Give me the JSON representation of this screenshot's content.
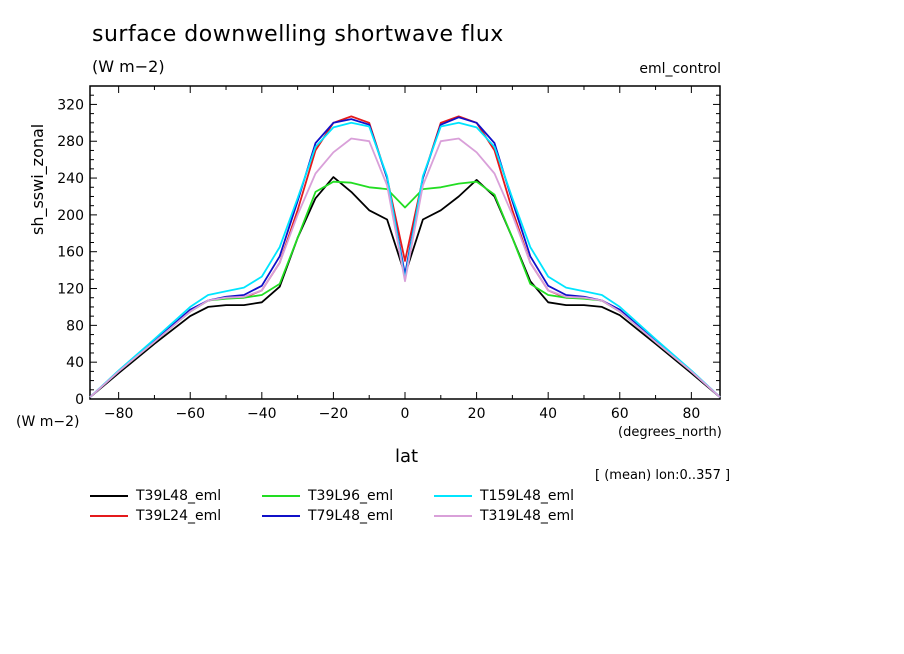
{
  "title": "surface downwelling shortwave flux",
  "units_label": "(W m−2)",
  "run_label": "eml_control",
  "y_axis_label": "sh_sswi_zonal",
  "y_unit_label": "(W m−2)",
  "x_unit_label": "(degrees_north)",
  "x_axis_label": "lat",
  "mean_note": "[ (mean) lon:0..357 ]",
  "chart_data": {
    "type": "line",
    "xlim": [
      -88,
      88
    ],
    "ylim": [
      0,
      340
    ],
    "x_ticks": [
      -80,
      -60,
      -40,
      -20,
      0,
      20,
      40,
      60,
      80
    ],
    "x_tick_labels": [
      "−80",
      "−60",
      "−40",
      "−20",
      "0",
      "20",
      "40",
      "60",
      "80"
    ],
    "y_ticks": [
      0,
      40,
      80,
      120,
      160,
      200,
      240,
      280,
      320
    ],
    "y_tick_labels": [
      "0",
      "40",
      "80",
      "120",
      "160",
      "200",
      "240",
      "280",
      "320"
    ],
    "x": [
      -88,
      -80,
      -70,
      -60,
      -55,
      -50,
      -45,
      -40,
      -35,
      -30,
      -25,
      -20,
      -15,
      -10,
      -5,
      0,
      5,
      10,
      15,
      20,
      25,
      30,
      35,
      40,
      45,
      50,
      55,
      60,
      70,
      80,
      88
    ],
    "series": [
      {
        "name": "T39L48_eml",
        "color": "#000000",
        "values": [
          2,
          28,
          60,
          90,
          100,
          102,
          102,
          105,
          122,
          175,
          218,
          241,
          225,
          205,
          195,
          135,
          195,
          205,
          220,
          238,
          220,
          175,
          128,
          105,
          102,
          102,
          100,
          91,
          60,
          28,
          2
        ]
      },
      {
        "name": "T39L24_eml",
        "color": "#e41a1c",
        "values": [
          2,
          30,
          63,
          95,
          107,
          110,
          110,
          118,
          148,
          205,
          270,
          300,
          307,
          300,
          240,
          150,
          240,
          300,
          307,
          300,
          270,
          205,
          148,
          118,
          110,
          110,
          107,
          95,
          63,
          30,
          2
        ]
      },
      {
        "name": "T39L96_eml",
        "color": "#22dd22",
        "values": [
          2,
          30,
          62,
          95,
          107,
          109,
          110,
          113,
          125,
          175,
          225,
          236,
          235,
          230,
          228,
          208,
          228,
          230,
          234,
          236,
          222,
          175,
          125,
          113,
          110,
          109,
          107,
          95,
          62,
          30,
          2
        ]
      },
      {
        "name": "T79L48_eml",
        "color": "#1010c8",
        "values": [
          2,
          30,
          63,
          97,
          107,
          111,
          113,
          123,
          155,
          215,
          278,
          300,
          304,
          298,
          240,
          135,
          240,
          298,
          306,
          300,
          278,
          215,
          155,
          123,
          113,
          111,
          107,
          97,
          63,
          30,
          2
        ]
      },
      {
        "name": "T159L48_eml",
        "color": "#00e5ff",
        "values": [
          2,
          31,
          65,
          100,
          113,
          117,
          121,
          133,
          165,
          218,
          274,
          295,
          300,
          296,
          242,
          130,
          242,
          296,
          300,
          295,
          274,
          218,
          165,
          133,
          121,
          117,
          113,
          100,
          65,
          31,
          2
        ]
      },
      {
        "name": "T319L48_eml",
        "color": "#d9a0d9",
        "values": [
          2,
          30,
          62,
          95,
          107,
          110,
          111,
          118,
          148,
          200,
          245,
          268,
          283,
          280,
          232,
          128,
          232,
          280,
          283,
          268,
          245,
          200,
          148,
          118,
          111,
          110,
          107,
          95,
          62,
          30,
          2
        ]
      }
    ]
  }
}
